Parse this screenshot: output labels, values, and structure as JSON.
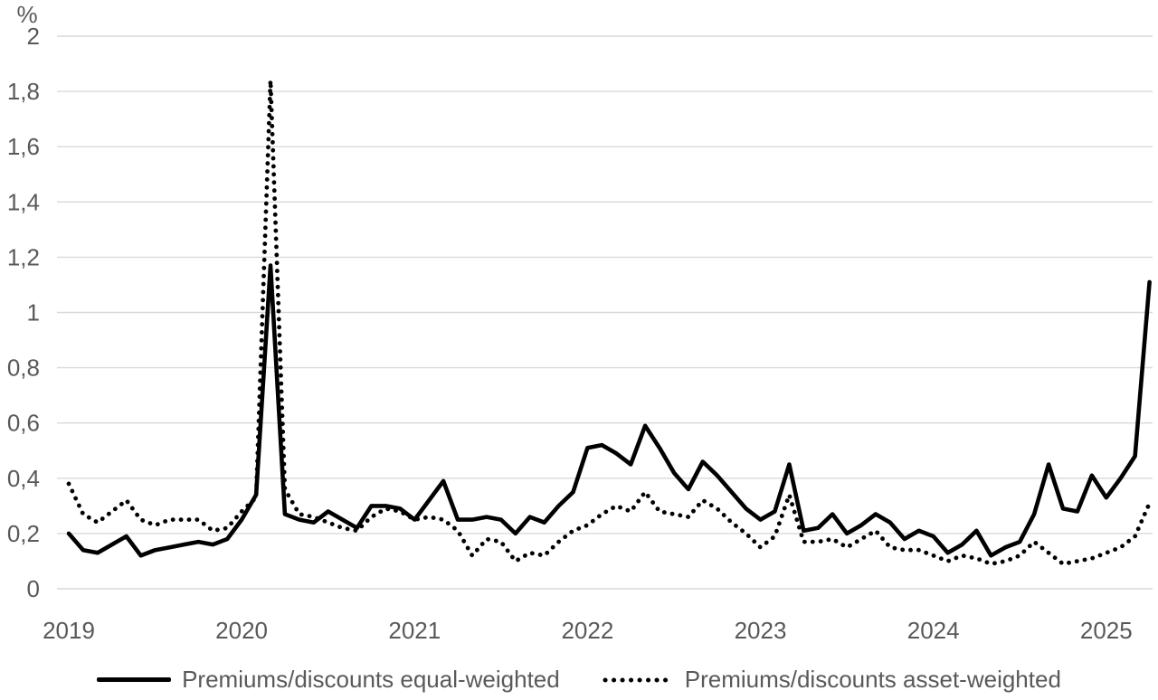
{
  "chart": {
    "unit_label": "%",
    "y_tick_labels": [
      "0",
      "0,2",
      "0,4",
      "0,6",
      "0,8",
      "1",
      "1,2",
      "1,4",
      "1,6",
      "1,8",
      "2"
    ],
    "x_tick_labels": [
      "2019",
      "2020",
      "2021",
      "2022",
      "2023",
      "2024",
      "2025"
    ],
    "legend": [
      {
        "label": "Premiums/discounts equal-weighted",
        "style": "solid"
      },
      {
        "label": "Premiums/discounts asset-weighted",
        "style": "dotted"
      }
    ],
    "colors": {
      "line": "#000000",
      "grid": "#d9d9d9",
      "text": "#595959",
      "background": "#ffffff"
    }
  },
  "chart_data": {
    "type": "line",
    "frequency": "monthly",
    "ylabel": "%",
    "ylim": [
      0,
      2
    ],
    "y_tick_step": 0.2,
    "grid": true,
    "legend_position": "bottom",
    "decimal_separator": ",",
    "categories": [
      "2019-01",
      "2019-02",
      "2019-03",
      "2019-04",
      "2019-05",
      "2019-06",
      "2019-07",
      "2019-08",
      "2019-09",
      "2019-10",
      "2019-11",
      "2019-12",
      "2020-01",
      "2020-02",
      "2020-03",
      "2020-04",
      "2020-05",
      "2020-06",
      "2020-07",
      "2020-08",
      "2020-09",
      "2020-10",
      "2020-11",
      "2020-12",
      "2021-01",
      "2021-02",
      "2021-03",
      "2021-04",
      "2021-05",
      "2021-06",
      "2021-07",
      "2021-08",
      "2021-09",
      "2021-10",
      "2021-11",
      "2021-12",
      "2022-01",
      "2022-02",
      "2022-03",
      "2022-04",
      "2022-05",
      "2022-06",
      "2022-07",
      "2022-08",
      "2022-09",
      "2022-10",
      "2022-11",
      "2022-12",
      "2023-01",
      "2023-02",
      "2023-03",
      "2023-04",
      "2023-05",
      "2023-06",
      "2023-07",
      "2023-08",
      "2023-09",
      "2023-10",
      "2023-11",
      "2023-12",
      "2024-01",
      "2024-02",
      "2024-03",
      "2024-04",
      "2024-05",
      "2024-06",
      "2024-07",
      "2024-08",
      "2024-09",
      "2024-10",
      "2024-11",
      "2024-12",
      "2025-01",
      "2025-02",
      "2025-03",
      "2025-04"
    ],
    "series": [
      {
        "name": "Premiums/discounts equal-weighted",
        "line_style": "solid",
        "values": [
          0.2,
          0.14,
          0.13,
          0.16,
          0.19,
          0.12,
          0.14,
          0.15,
          0.16,
          0.17,
          0.16,
          0.18,
          0.25,
          0.34,
          1.17,
          0.27,
          0.25,
          0.24,
          0.28,
          0.25,
          0.22,
          0.3,
          0.3,
          0.29,
          0.25,
          0.32,
          0.39,
          0.25,
          0.25,
          0.26,
          0.25,
          0.2,
          0.26,
          0.24,
          0.3,
          0.35,
          0.51,
          0.52,
          0.49,
          0.45,
          0.59,
          0.51,
          0.42,
          0.36,
          0.46,
          0.41,
          0.35,
          0.29,
          0.25,
          0.28,
          0.45,
          0.21,
          0.22,
          0.27,
          0.2,
          0.23,
          0.27,
          0.24,
          0.18,
          0.21,
          0.19,
          0.13,
          0.16,
          0.21,
          0.12,
          0.15,
          0.17,
          0.27,
          0.45,
          0.29,
          0.28,
          0.41,
          0.33,
          0.4,
          0.48,
          1.11
        ]
      },
      {
        "name": "Premiums/discounts asset-weighted",
        "line_style": "dotted",
        "values": [
          0.38,
          0.27,
          0.24,
          0.28,
          0.32,
          0.25,
          0.23,
          0.25,
          0.25,
          0.25,
          0.21,
          0.22,
          0.28,
          0.33,
          1.84,
          0.36,
          0.27,
          0.26,
          0.24,
          0.22,
          0.21,
          0.26,
          0.29,
          0.28,
          0.25,
          0.26,
          0.25,
          0.21,
          0.12,
          0.18,
          0.17,
          0.1,
          0.13,
          0.12,
          0.17,
          0.21,
          0.23,
          0.27,
          0.3,
          0.28,
          0.35,
          0.28,
          0.27,
          0.26,
          0.32,
          0.29,
          0.24,
          0.2,
          0.15,
          0.19,
          0.34,
          0.17,
          0.17,
          0.18,
          0.15,
          0.18,
          0.21,
          0.15,
          0.14,
          0.14,
          0.12,
          0.1,
          0.12,
          0.11,
          0.09,
          0.1,
          0.12,
          0.17,
          0.13,
          0.09,
          0.1,
          0.11,
          0.13,
          0.15,
          0.19,
          0.31
        ]
      }
    ]
  }
}
